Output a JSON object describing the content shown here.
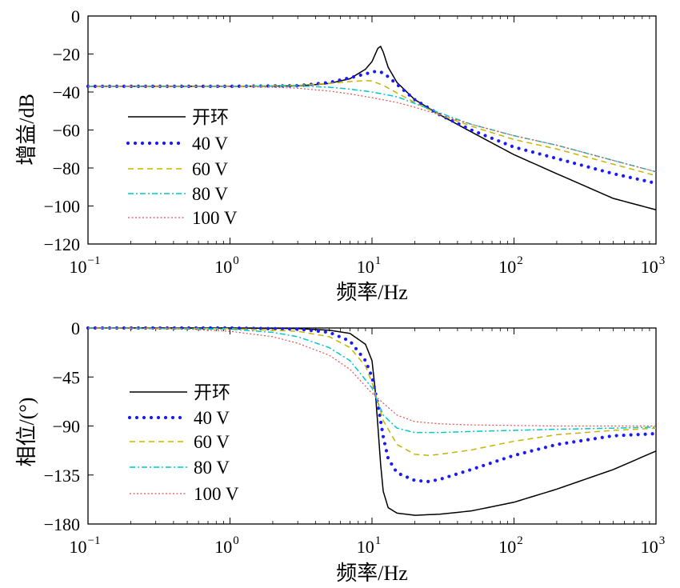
{
  "chart_data": [
    {
      "type": "line",
      "xscale": "log",
      "xlim": [
        0.1,
        1000
      ],
      "ylim": [
        -120,
        0
      ],
      "yticks": [
        0,
        -20,
        -40,
        -60,
        -80,
        -100,
        -120
      ],
      "ytick_labels": [
        "0",
        "−20",
        "−40",
        "−60",
        "−80",
        "−100",
        "−120"
      ],
      "xticks": [
        {
          "value": 0.1,
          "base": "10",
          "exp": "−1"
        },
        {
          "value": 1,
          "base": "10",
          "exp": "0"
        },
        {
          "value": 10,
          "base": "10",
          "exp": "1"
        },
        {
          "value": 100,
          "base": "10",
          "exp": "2"
        },
        {
          "value": 1000,
          "base": "10",
          "exp": "3"
        }
      ],
      "xlabel": "频率/Hz",
      "ylabel": "增益/dB",
      "legend_position": "left",
      "series": [
        {
          "name": "开环",
          "color": "#000000",
          "style": "solid",
          "x": [
            0.1,
            1,
            3,
            5,
            7,
            9,
            10,
            11,
            11.5,
            12,
            13,
            15,
            20,
            30,
            50,
            100,
            200,
            500,
            1000
          ],
          "y": [
            -37,
            -37,
            -36.8,
            -35.5,
            -33,
            -28,
            -24,
            -17,
            -16,
            -19,
            -27,
            -35,
            -44,
            -52,
            -61,
            -73,
            -83,
            -96,
            -102
          ]
        },
        {
          "name": "40 V",
          "color": "#1a1aff",
          "style": "dots",
          "x": [
            0.1,
            1,
            3,
            5,
            7,
            9,
            10,
            11,
            12,
            13,
            15,
            20,
            30,
            50,
            100,
            200,
            500,
            1000
          ],
          "y": [
            -37,
            -37,
            -36.7,
            -35,
            -32.5,
            -30.5,
            -29.5,
            -29,
            -30,
            -32,
            -36,
            -44,
            -52,
            -60,
            -69,
            -75,
            -83,
            -88
          ]
        },
        {
          "name": "60 V",
          "color": "#c8b400",
          "style": "dashed",
          "x": [
            0.1,
            1,
            3,
            5,
            7,
            9,
            10,
            12,
            15,
            20,
            30,
            50,
            100,
            200,
            500,
            1000
          ],
          "y": [
            -37,
            -37,
            -36.5,
            -35.5,
            -34.5,
            -34,
            -34.2,
            -36.5,
            -40.5,
            -45.5,
            -52,
            -58,
            -65,
            -70,
            -78,
            -84
          ]
        },
        {
          "name": "80 V",
          "color": "#00c8c8",
          "style": "dashdot",
          "x": [
            0.1,
            1,
            3,
            5,
            7,
            10,
            15,
            20,
            30,
            50,
            100,
            200,
            500,
            1000
          ],
          "y": [
            -37,
            -37,
            -36.8,
            -37.5,
            -38.5,
            -40,
            -42.5,
            -46,
            -51,
            -57,
            -63,
            -68,
            -76,
            -82
          ]
        },
        {
          "name": "100 V",
          "color": "#e05050",
          "style": "dotted",
          "x": [
            0.1,
            1,
            2,
            3,
            5,
            7,
            10,
            15,
            20,
            30,
            50,
            100,
            200,
            500,
            1000
          ],
          "y": [
            -37,
            -37,
            -37.5,
            -38,
            -39.5,
            -41,
            -43,
            -45.5,
            -48,
            -52,
            -57,
            -63,
            -68,
            -76,
            -82
          ]
        }
      ]
    },
    {
      "type": "line",
      "xscale": "log",
      "xlim": [
        0.1,
        1000
      ],
      "ylim": [
        -180,
        0
      ],
      "yticks": [
        0,
        -45,
        -90,
        -135,
        -180
      ],
      "ytick_labels": [
        "0",
        "−45",
        "−90",
        "−135",
        "−180"
      ],
      "xticks": [
        {
          "value": 0.1,
          "base": "10",
          "exp": "−1"
        },
        {
          "value": 1,
          "base": "10",
          "exp": "0"
        },
        {
          "value": 10,
          "base": "10",
          "exp": "1"
        },
        {
          "value": 100,
          "base": "10",
          "exp": "2"
        },
        {
          "value": 1000,
          "base": "10",
          "exp": "3"
        }
      ],
      "xlabel": "频率/Hz",
      "ylabel": "相位/(°)",
      "legend_position": "left",
      "series": [
        {
          "name": "开环",
          "color": "#000000",
          "style": "solid",
          "x": [
            0.1,
            1,
            3,
            5,
            7,
            9,
            10,
            10.5,
            11,
            11.5,
            12,
            13,
            15,
            20,
            30,
            50,
            100,
            200,
            500,
            1000
          ],
          "y": [
            0,
            0,
            -0.5,
            -2,
            -5,
            -15,
            -30,
            -55,
            -90,
            -125,
            -150,
            -165,
            -170,
            -172,
            -171,
            -168,
            -160,
            -148,
            -130,
            -113
          ]
        },
        {
          "name": "40 V",
          "color": "#1a1aff",
          "style": "dots",
          "x": [
            0.1,
            1,
            3,
            5,
            7,
            9,
            10,
            11,
            12,
            13,
            15,
            20,
            25,
            30,
            50,
            100,
            200,
            500,
            1000
          ],
          "y": [
            0,
            0,
            -1,
            -4,
            -12,
            -30,
            -45,
            -70,
            -100,
            -120,
            -133,
            -140,
            -141,
            -139,
            -130,
            -117,
            -107,
            -99,
            -97
          ]
        },
        {
          "name": "60 V",
          "color": "#c8b400",
          "style": "dashed",
          "x": [
            0.1,
            1,
            3,
            5,
            7,
            9,
            10,
            12,
            15,
            20,
            25,
            30,
            50,
            100,
            200,
            500,
            1000
          ],
          "y": [
            0,
            -0.5,
            -3,
            -8,
            -18,
            -35,
            -50,
            -85,
            -107,
            -116,
            -117,
            -116,
            -112,
            -104,
            -98,
            -94,
            -92
          ]
        },
        {
          "name": "80 V",
          "color": "#00c8c8",
          "style": "dashdot",
          "x": [
            0.1,
            1,
            2,
            3,
            5,
            7,
            10,
            12,
            15,
            20,
            30,
            50,
            100,
            200,
            500,
            1000
          ],
          "y": [
            0,
            -1,
            -4,
            -8,
            -18,
            -30,
            -55,
            -80,
            -92,
            -96,
            -96,
            -95,
            -94,
            -93,
            -92,
            -91
          ]
        },
        {
          "name": "100 V",
          "color": "#e05050",
          "style": "dotted",
          "x": [
            0.1,
            0.5,
            1,
            2,
            3,
            5,
            7,
            10,
            15,
            20,
            30,
            50,
            100,
            200,
            500,
            1000
          ],
          "y": [
            0,
            -1,
            -3,
            -8,
            -14,
            -25,
            -38,
            -60,
            -80,
            -86,
            -88,
            -89,
            -89.5,
            -90,
            -90,
            -90
          ]
        }
      ]
    }
  ]
}
